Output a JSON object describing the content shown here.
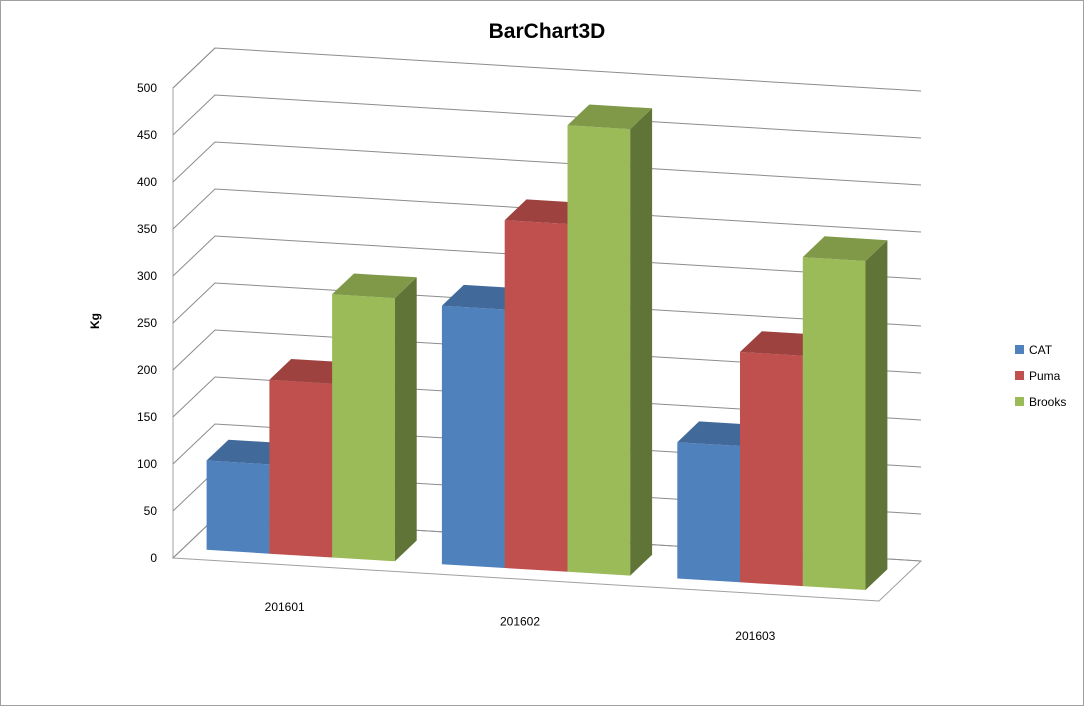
{
  "chart_data": {
    "type": "bar",
    "title": "BarChart3D",
    "ylabel": "Kg",
    "xlabel": "",
    "ylim": [
      0,
      500
    ],
    "ytick_step": 50,
    "categories": [
      "201601",
      "201602",
      "201603"
    ],
    "series": [
      {
        "name": "CAT",
        "color": "#4f81bd",
        "values": [
          95,
          275,
          145
        ]
      },
      {
        "name": "Puma",
        "color": "#c0504d",
        "values": [
          185,
          370,
          245
        ]
      },
      {
        "name": "Brooks",
        "color": "#9bbb59",
        "values": [
          280,
          475,
          350
        ]
      }
    ],
    "legend_position": "right",
    "grid": true
  }
}
